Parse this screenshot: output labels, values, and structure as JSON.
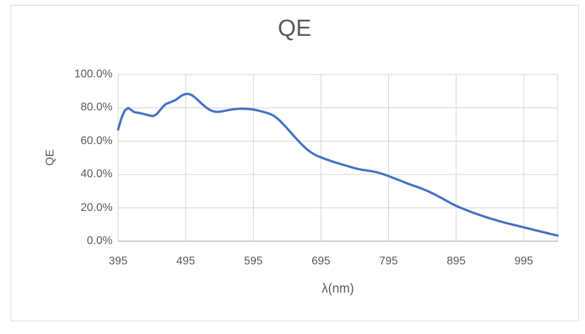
{
  "chart_data": {
    "type": "line",
    "title": "QE",
    "xlabel": "λ(nm)",
    "ylabel": "QE",
    "xlim": [
      395,
      1045
    ],
    "ylim_percent": [
      0,
      100
    ],
    "grid": true,
    "legend": "none",
    "colors": {
      "line": "#4472C4",
      "gridline": "#D9D9D9",
      "axis_line": "#BFBFBF",
      "text": "#595959",
      "frame_border": "#D9D9D9"
    },
    "x_ticks": [
      {
        "value": 395,
        "label": "395"
      },
      {
        "value": 495,
        "label": "495"
      },
      {
        "value": 595,
        "label": "595"
      },
      {
        "value": 695,
        "label": "695"
      },
      {
        "value": 795,
        "label": "795"
      },
      {
        "value": 895,
        "label": "895"
      },
      {
        "value": 995,
        "label": "995"
      }
    ],
    "y_ticks": [
      {
        "value": 0,
        "label": "0.0%"
      },
      {
        "value": 20,
        "label": "20.0%"
      },
      {
        "value": 40,
        "label": "40.0%"
      },
      {
        "value": 60,
        "label": "60.0%"
      },
      {
        "value": 80,
        "label": "80.0%"
      },
      {
        "value": 100,
        "label": "100.0%"
      }
    ],
    "series": [
      {
        "name": "QE",
        "points": [
          [
            395,
            67
          ],
          [
            400,
            74
          ],
          [
            405,
            78.5
          ],
          [
            410,
            80
          ],
          [
            415,
            78.6
          ],
          [
            418,
            77.6
          ],
          [
            422,
            77.2
          ],
          [
            427,
            76.9
          ],
          [
            432,
            76.4
          ],
          [
            437,
            75.9
          ],
          [
            442,
            75.3
          ],
          [
            447,
            75.1
          ],
          [
            452,
            76.2
          ],
          [
            457,
            78.6
          ],
          [
            462,
            81
          ],
          [
            466,
            82.4
          ],
          [
            470,
            83
          ],
          [
            475,
            83.8
          ],
          [
            480,
            84.7
          ],
          [
            485,
            86.2
          ],
          [
            490,
            87.6
          ],
          [
            495,
            88.4
          ],
          [
            500,
            88.3
          ],
          [
            505,
            87.4
          ],
          [
            510,
            85.8
          ],
          [
            515,
            83.9
          ],
          [
            520,
            82
          ],
          [
            525,
            80.3
          ],
          [
            530,
            78.9
          ],
          [
            535,
            78
          ],
          [
            540,
            77.6
          ],
          [
            545,
            77.7
          ],
          [
            550,
            78
          ],
          [
            555,
            78.4
          ],
          [
            560,
            78.8
          ],
          [
            565,
            79.1
          ],
          [
            570,
            79.3
          ],
          [
            575,
            79.5
          ],
          [
            580,
            79.5
          ],
          [
            585,
            79.4
          ],
          [
            590,
            79.2
          ],
          [
            595,
            79
          ],
          [
            600,
            78.6
          ],
          [
            605,
            78.1
          ],
          [
            610,
            77.6
          ],
          [
            615,
            77
          ],
          [
            620,
            76.3
          ],
          [
            625,
            75.3
          ],
          [
            630,
            73.8
          ],
          [
            635,
            72
          ],
          [
            640,
            69.9
          ],
          [
            645,
            67.7
          ],
          [
            650,
            65.4
          ],
          [
            655,
            63.1
          ],
          [
            660,
            60.9
          ],
          [
            665,
            58.7
          ],
          [
            670,
            56.7
          ],
          [
            675,
            54.9
          ],
          [
            680,
            53.4
          ],
          [
            685,
            52.1
          ],
          [
            690,
            51.1
          ],
          [
            695,
            50.3
          ],
          [
            700,
            49.5
          ],
          [
            705,
            48.8
          ],
          [
            710,
            48.1
          ],
          [
            715,
            47.4
          ],
          [
            720,
            46.8
          ],
          [
            725,
            46.2
          ],
          [
            730,
            45.6
          ],
          [
            735,
            45
          ],
          [
            740,
            44.4
          ],
          [
            745,
            43.8
          ],
          [
            750,
            43.3
          ],
          [
            755,
            42.9
          ],
          [
            760,
            42.6
          ],
          [
            765,
            42.3
          ],
          [
            770,
            42
          ],
          [
            775,
            41.6
          ],
          [
            780,
            41.1
          ],
          [
            785,
            40.5
          ],
          [
            790,
            39.8
          ],
          [
            795,
            39.1
          ],
          [
            800,
            38.3
          ],
          [
            805,
            37.5
          ],
          [
            810,
            36.7
          ],
          [
            815,
            35.9
          ],
          [
            820,
            35.1
          ],
          [
            825,
            34.3
          ],
          [
            830,
            33.6
          ],
          [
            835,
            32.9
          ],
          [
            840,
            32.2
          ],
          [
            845,
            31.4
          ],
          [
            850,
            30.6
          ],
          [
            855,
            29.7
          ],
          [
            860,
            28.7
          ],
          [
            865,
            27.7
          ],
          [
            870,
            26.6
          ],
          [
            875,
            25.5
          ],
          [
            880,
            24.4
          ],
          [
            885,
            23.3
          ],
          [
            890,
            22.2
          ],
          [
            895,
            21.2
          ],
          [
            900,
            20.3
          ],
          [
            905,
            19.5
          ],
          [
            910,
            18.7
          ],
          [
            915,
            17.9
          ],
          [
            920,
            17.1
          ],
          [
            925,
            16.4
          ],
          [
            930,
            15.7
          ],
          [
            935,
            15
          ],
          [
            940,
            14.3
          ],
          [
            945,
            13.7
          ],
          [
            950,
            13.1
          ],
          [
            955,
            12.5
          ],
          [
            960,
            11.9
          ],
          [
            965,
            11.3
          ],
          [
            970,
            10.8
          ],
          [
            975,
            10.3
          ],
          [
            980,
            9.8
          ],
          [
            985,
            9.3
          ],
          [
            990,
            8.8
          ],
          [
            995,
            8.3
          ],
          [
            1000,
            7.8
          ],
          [
            1005,
            7.3
          ],
          [
            1010,
            6.8
          ],
          [
            1015,
            6.3
          ],
          [
            1020,
            5.8
          ],
          [
            1025,
            5.3
          ],
          [
            1030,
            4.8
          ],
          [
            1035,
            4.3
          ],
          [
            1040,
            3.8
          ],
          [
            1045,
            3.4
          ]
        ]
      }
    ]
  }
}
